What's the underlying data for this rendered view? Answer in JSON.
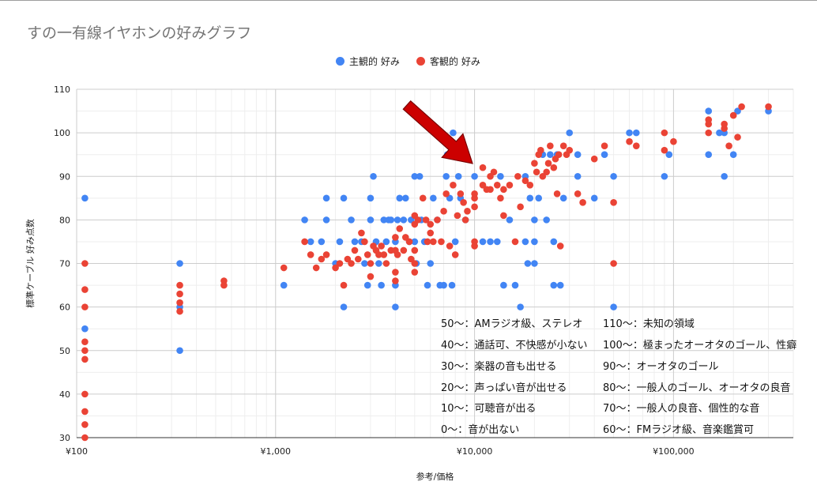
{
  "chart_data": {
    "type": "scatter",
    "title": "すの一有線イヤホンの好みグラフ",
    "xlabel": "参考/価格",
    "ylabel": "標準ケーブル 好み点数",
    "xscale": "log",
    "xlim": [
      100,
      400000
    ],
    "ylim": [
      30,
      110
    ],
    "x_ticks": [
      100,
      1000,
      10000,
      100000
    ],
    "x_tick_labels": [
      "¥100",
      "¥1,000",
      "¥10,000",
      "¥100,000"
    ],
    "y_ticks": [
      30,
      40,
      50,
      60,
      70,
      80,
      90,
      100,
      110
    ],
    "grid": true,
    "legend_position": "top",
    "series": [
      {
        "name": "主観的 好み",
        "color": "#4285f4",
        "points": [
          [
            110,
            85
          ],
          [
            110,
            55
          ],
          [
            330,
            70
          ],
          [
            330,
            60
          ],
          [
            330,
            50
          ],
          [
            1100,
            65
          ],
          [
            1400,
            80
          ],
          [
            1500,
            75
          ],
          [
            1700,
            75
          ],
          [
            1800,
            85
          ],
          [
            1800,
            80
          ],
          [
            2000,
            70
          ],
          [
            2100,
            75
          ],
          [
            2200,
            85
          ],
          [
            2200,
            60
          ],
          [
            2400,
            80
          ],
          [
            2500,
            75
          ],
          [
            2700,
            75
          ],
          [
            2800,
            70
          ],
          [
            2900,
            65
          ],
          [
            3000,
            85
          ],
          [
            3000,
            80
          ],
          [
            3100,
            90
          ],
          [
            3200,
            75
          ],
          [
            3300,
            70
          ],
          [
            3400,
            65
          ],
          [
            3500,
            80
          ],
          [
            3600,
            75
          ],
          [
            3700,
            80
          ],
          [
            3800,
            80
          ],
          [
            4000,
            75
          ],
          [
            4000,
            65
          ],
          [
            4000,
            60
          ],
          [
            4100,
            80
          ],
          [
            4200,
            85
          ],
          [
            4400,
            80
          ],
          [
            4500,
            85
          ],
          [
            4700,
            75
          ],
          [
            4800,
            80
          ],
          [
            5000,
            90
          ],
          [
            5000,
            75
          ],
          [
            5100,
            70
          ],
          [
            5300,
            90
          ],
          [
            5400,
            80
          ],
          [
            5600,
            75
          ],
          [
            5800,
            65
          ],
          [
            6000,
            70
          ],
          [
            6200,
            85
          ],
          [
            6500,
            80
          ],
          [
            6700,
            65
          ],
          [
            7000,
            65
          ],
          [
            7200,
            90
          ],
          [
            7300,
            95
          ],
          [
            7500,
            85
          ],
          [
            7700,
            65
          ],
          [
            7800,
            100
          ],
          [
            8000,
            75
          ],
          [
            8300,
            90
          ],
          [
            8500,
            85
          ],
          [
            9000,
            80
          ],
          [
            10000,
            90
          ],
          [
            11000,
            75
          ],
          [
            12000,
            75
          ],
          [
            13000,
            75
          ],
          [
            13500,
            90
          ],
          [
            14000,
            65
          ],
          [
            15000,
            80
          ],
          [
            16000,
            65
          ],
          [
            17000,
            60
          ],
          [
            18000,
            90
          ],
          [
            18000,
            75
          ],
          [
            18500,
            70
          ],
          [
            19000,
            85
          ],
          [
            20000,
            80
          ],
          [
            20000,
            75
          ],
          [
            20000,
            70
          ],
          [
            21000,
            85
          ],
          [
            22000,
            95
          ],
          [
            23000,
            80
          ],
          [
            24000,
            95
          ],
          [
            25000,
            75
          ],
          [
            25000,
            65
          ],
          [
            26000,
            95
          ],
          [
            27000,
            65
          ],
          [
            28000,
            85
          ],
          [
            30000,
            100
          ],
          [
            33000,
            95
          ],
          [
            33000,
            90
          ],
          [
            40000,
            85
          ],
          [
            45000,
            95
          ],
          [
            50000,
            90
          ],
          [
            50000,
            60
          ],
          [
            60000,
            100
          ],
          [
            65000,
            100
          ],
          [
            90000,
            90
          ],
          [
            95000,
            95
          ],
          [
            150000,
            105
          ],
          [
            150000,
            95
          ],
          [
            170000,
            100
          ],
          [
            180000,
            90
          ],
          [
            180000,
            100
          ],
          [
            200000,
            95
          ],
          [
            210000,
            105
          ],
          [
            300000,
            105
          ]
        ]
      },
      {
        "name": "客観的 好み",
        "color": "#ea4335",
        "points": [
          [
            110,
            70
          ],
          [
            110,
            64
          ],
          [
            110,
            60
          ],
          [
            110,
            52
          ],
          [
            110,
            50
          ],
          [
            110,
            48
          ],
          [
            110,
            40
          ],
          [
            110,
            36
          ],
          [
            110,
            33
          ],
          [
            110,
            30
          ],
          [
            330,
            65
          ],
          [
            330,
            63
          ],
          [
            330,
            61
          ],
          [
            330,
            59
          ],
          [
            550,
            66
          ],
          [
            550,
            65
          ],
          [
            1100,
            69
          ],
          [
            1400,
            75
          ],
          [
            1500,
            72
          ],
          [
            1600,
            69
          ],
          [
            1700,
            71
          ],
          [
            1800,
            72
          ],
          [
            2000,
            69
          ],
          [
            2100,
            70
          ],
          [
            2200,
            65
          ],
          [
            2300,
            71
          ],
          [
            2400,
            70
          ],
          [
            2500,
            73
          ],
          [
            2600,
            71
          ],
          [
            2700,
            77
          ],
          [
            2800,
            75
          ],
          [
            2900,
            72
          ],
          [
            3000,
            70
          ],
          [
            3000,
            67
          ],
          [
            3100,
            74
          ],
          [
            3200,
            73
          ],
          [
            3300,
            72
          ],
          [
            3400,
            74
          ],
          [
            3500,
            72
          ],
          [
            3600,
            70
          ],
          [
            3800,
            73
          ],
          [
            4000,
            76
          ],
          [
            4000,
            73
          ],
          [
            4000,
            68
          ],
          [
            4000,
            66
          ],
          [
            4100,
            72
          ],
          [
            4200,
            78
          ],
          [
            4400,
            73
          ],
          [
            4500,
            76
          ],
          [
            4700,
            75
          ],
          [
            4800,
            71
          ],
          [
            5000,
            81
          ],
          [
            5000,
            79
          ],
          [
            5000,
            73
          ],
          [
            5000,
            70
          ],
          [
            5000,
            68
          ],
          [
            5200,
            80
          ],
          [
            5500,
            85
          ],
          [
            5700,
            80
          ],
          [
            5800,
            75
          ],
          [
            6000,
            79
          ],
          [
            6000,
            77
          ],
          [
            6200,
            75
          ],
          [
            6500,
            80
          ],
          [
            6800,
            75
          ],
          [
            7000,
            82
          ],
          [
            7200,
            86
          ],
          [
            7500,
            74
          ],
          [
            7800,
            88
          ],
          [
            8000,
            72
          ],
          [
            8200,
            81
          ],
          [
            8500,
            86
          ],
          [
            8800,
            84
          ],
          [
            9000,
            80
          ],
          [
            9200,
            82
          ],
          [
            10000,
            86
          ],
          [
            10000,
            85
          ],
          [
            10000,
            83
          ],
          [
            10000,
            75
          ],
          [
            10000,
            74
          ],
          [
            11000,
            92
          ],
          [
            11000,
            88
          ],
          [
            11500,
            87
          ],
          [
            12000,
            90
          ],
          [
            12000,
            87
          ],
          [
            12500,
            91
          ],
          [
            13000,
            88
          ],
          [
            13500,
            85
          ],
          [
            14000,
            81
          ],
          [
            14000,
            87
          ],
          [
            15000,
            88
          ],
          [
            16000,
            75
          ],
          [
            16500,
            90
          ],
          [
            17000,
            83
          ],
          [
            18000,
            89
          ],
          [
            19000,
            88
          ],
          [
            20000,
            93
          ],
          [
            20500,
            91
          ],
          [
            21000,
            95
          ],
          [
            21500,
            96
          ],
          [
            22000,
            90
          ],
          [
            23000,
            91
          ],
          [
            23500,
            93
          ],
          [
            24000,
            97
          ],
          [
            25000,
            92
          ],
          [
            25500,
            94
          ],
          [
            26000,
            86
          ],
          [
            26500,
            95
          ],
          [
            27000,
            74
          ],
          [
            28000,
            97
          ],
          [
            29000,
            95
          ],
          [
            30000,
            96
          ],
          [
            33000,
            86
          ],
          [
            35000,
            84
          ],
          [
            40000,
            94
          ],
          [
            45000,
            97
          ],
          [
            50000,
            84
          ],
          [
            50000,
            70
          ],
          [
            60000,
            98
          ],
          [
            65000,
            97
          ],
          [
            90000,
            100
          ],
          [
            90000,
            96
          ],
          [
            100000,
            98
          ],
          [
            150000,
            103
          ],
          [
            150000,
            102
          ],
          [
            150000,
            100
          ],
          [
            180000,
            102
          ],
          [
            180000,
            101
          ],
          [
            190000,
            97
          ],
          [
            200000,
            104
          ],
          [
            210000,
            99
          ],
          [
            220000,
            106
          ],
          [
            300000,
            106
          ]
        ]
      }
    ],
    "annotations": [
      "50〜：AMラジオ級、ステレオ",
      "40〜：通話可、不快感が小ない",
      "30〜：楽器の音も出せる",
      "20〜：声っぱい音が出せる",
      "10〜：可聴音が出る",
      "0〜：音が出ない",
      "110〜：未知の領域",
      "100〜：極まったオーオタのゴール、性癖",
      "90〜：オーオタのゴール",
      "80〜：一般人のゴール、オーオタの良音",
      "70〜：一般人の良音、個性的な音",
      "60〜：FMラジオ級、音楽鑑賞可"
    ],
    "arrow_color": "#cc0000"
  }
}
